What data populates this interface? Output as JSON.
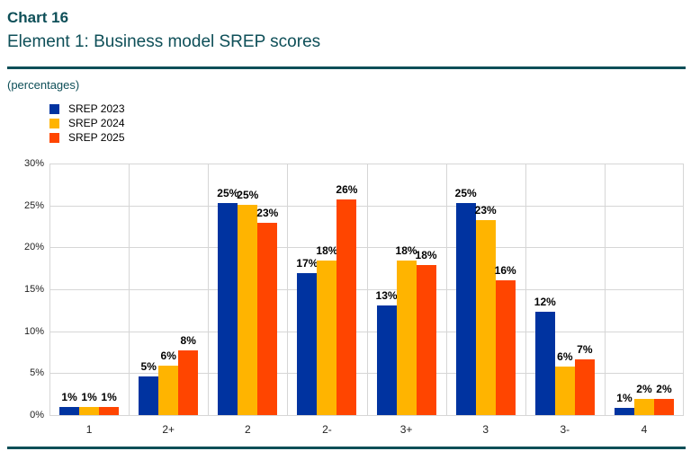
{
  "header": {
    "kicker": "Chart 16",
    "title": "Element 1: Business model SREP scores",
    "note": "(percentages)"
  },
  "colors": {
    "accent": "#0e4f58",
    "grid": "#d6d6d6",
    "text": "#000000",
    "series": [
      "#0033a0",
      "#ffb400",
      "#ff4500"
    ]
  },
  "chart_data": {
    "type": "bar",
    "title": "Element 1: Business model SREP scores",
    "units": "percentages",
    "categories": [
      "1",
      "2+",
      "2",
      "2-",
      "3+",
      "3",
      "3-",
      "4"
    ],
    "series": [
      {
        "name": "SREP 2023",
        "color": "#0033a0",
        "values": [
          1,
          4.6,
          25.3,
          16.9,
          13.1,
          25.3,
          12.3,
          0.9
        ],
        "labels": [
          "1%",
          "5%",
          "25%",
          "17%",
          "13%",
          "25%",
          "12%",
          "1%"
        ]
      },
      {
        "name": "SREP 2024",
        "color": "#ffb400",
        "values": [
          1,
          5.9,
          25.1,
          18.4,
          18.4,
          23.2,
          5.8,
          1.9
        ],
        "labels": [
          "1%",
          "6%",
          "25%",
          "18%",
          "18%",
          "23%",
          "6%",
          "2%"
        ]
      },
      {
        "name": "SREP 2025",
        "color": "#ff4500",
        "values": [
          1,
          7.7,
          22.9,
          25.7,
          17.9,
          16.1,
          6.6,
          1.9
        ],
        "labels": [
          "1%",
          "8%",
          "23%",
          "26%",
          "18%",
          "16%",
          "7%",
          "2%"
        ]
      }
    ],
    "ylim": [
      0,
      30
    ],
    "ytick_step": 5,
    "ytick_labels": [
      "0%",
      "5%",
      "10%",
      "15%",
      "20%",
      "25%",
      "30%"
    ],
    "grid": true,
    "legend_position": "top-left"
  }
}
